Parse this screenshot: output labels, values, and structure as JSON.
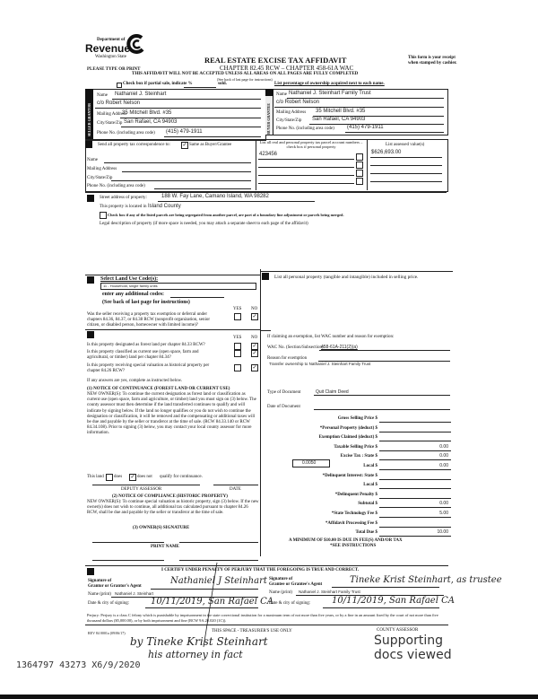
{
  "header": {
    "logo": {
      "dept": "Department of",
      "name": "Revenue",
      "state": "Washington State"
    },
    "title": "REAL ESTATE EXCISE TAX AFFIDAVIT",
    "chapter": "CHAPTER 82.45 RCW – CHAPTER 458-61A WAC",
    "receipt_note_1": "This form is your receipt",
    "receipt_note_2": "when stamped by cashier.",
    "type_or_print": "PLEASE TYPE OR PRINT",
    "warning": "THIS AFFIDAVIT WILL NOT BE ACCEPTED UNLESS ALL AREAS ON ALL PAGES ARE FULLY COMPLETED",
    "see_back": "(See back of last page for instructions)",
    "partial_sale": "Check box if partial sale, indicate %",
    "sold": "sold.",
    "ownership_pct": "List percentage of ownership acquired next to each name."
  },
  "seller": {
    "side_label": "SELLER GRANTOR",
    "name_label": "Name",
    "name": "Nathaniel J. Steinhart",
    "name2": "c/o Robert Nelson",
    "address_label": "Mailing Address",
    "address": "35 Mitchell Blvd. #35",
    "city_label": "City/State/Zip",
    "city": "San Rafael, CA 94903",
    "phone_label": "Phone No. (including area code)",
    "phone": "(415) 479-1911"
  },
  "buyer": {
    "side_label": "BUYER GRANTEE",
    "name_label": "Name",
    "name": "Nathaniel J. Steinhart Family Trust",
    "name2": "c/o Robert Nelson",
    "address_label": "Mailing Address",
    "address": "35 Mitchell Blvd. #35",
    "city_label": "City/State/Zip",
    "city": "San Rafael, CA 94903",
    "phone_label": "Phone No. (including area code)",
    "phone": "(415) 479-1911"
  },
  "section3": {
    "send_label": "Send all property tax correspondence to:",
    "same_as": "Same as Buyer/Grantee",
    "same_checked": true,
    "name_label": "Name",
    "address_label": "Mailing Address",
    "city_label": "City/State/Zip",
    "phone_label": "Phone No. (including area code)",
    "parcel_header": "List all real and personal property tax parcel account numbers – check box if personal property",
    "parcels": [
      "423456",
      "",
      "",
      ""
    ],
    "assessed_header": "List assessed value(s)",
    "assessed": [
      "$626,693.00",
      "",
      "",
      ""
    ]
  },
  "section4": {
    "street_label": "Street address of property:",
    "street": "188 W. Fay Lane, Camano Island, WA 98282",
    "located_label": "This property is located in",
    "located": "Island County",
    "segregated": "Check box if any of the listed parcels are being segregated from another parcel, are part of a boundary line adjustment or parcels being merged.",
    "legal": "Legal description of property (if more space is needed, you may attach a separate sheet to each page of the affidavit)"
  },
  "section5": {
    "label": "Select Land Use Code(s):",
    "code": "11 - Household, single family units",
    "additional": "enter any additional codes:",
    "see_back": "(See back of last page for instructions)",
    "yes": "YES",
    "no": "NO",
    "exemption_q": "Was the seller receiving a property tax exemption or deferral under chapters 84.36, 84.37, or 84.38 RCW (nonprofit organization, senior citizen, or disabled person, homeowner with limited income)?"
  },
  "section6": {
    "yes": "YES",
    "no": "NO",
    "q1": "Is this property designated as forest land per chapter 84.33 RCW?",
    "q2": "Is this property classified as current use (open space, farm and agricultural, or timber) land per chapter 84.34?",
    "q3": "Is this property receiving special valuation as historical property per chapter 84.26 RCW?",
    "if_yes": "If any answers are yes, complete as instructed below.",
    "notice1_title": "(1) NOTICE OF CONTINUANCE (FOREST LAND OR CURRENT USE)",
    "notice1_body": "NEW OWNER(S): To continue the current designation as forest land or classification as current use (open space, farm and agriculture, or timber) land you must sign on (3) below. The county assessor must then determine if the land transferred continues to qualify and will indicate by signing below. If the land no longer qualifies or you do not wish to continue the designation or classification, it will be removed and the compensating or additional taxes will be due and payable by the seller or transferor at the time of sale. (RCW 84.33.140 or RCW 84.34.108). Prior to signing (3) below, you may contact your local county assessor for more information.",
    "this_land": "This land",
    "does": "does",
    "does_not": "does not",
    "qualify": "qualify for continuance.",
    "deputy": "DEPUTY ASSESSOR",
    "date": "DATE",
    "notice2_title": "(2) NOTICE OF COMPLIANCE (HISTORIC PROPERTY)",
    "notice2_body": "NEW OWNER(S): To continue special valuation as historic property, sign (3) below. If the new owner(s) does not wish to continue, all additional tax calculated pursuant to chapter 84.26 RCW, shall be due and payable by the seller or transferor at the time of sale.",
    "owner_sig": "(3) OWNER(S) SIGNATURE",
    "print_name": "PRINT NAME"
  },
  "section7": {
    "personal_property": "List all personal property (tangible and intangible) included in selling price.",
    "exemption_claim": "If claiming an exemption, list WAC number and reason for exemption:",
    "wac_label": "WAC No. (Section/Subsection)",
    "wac": "458-61A-211(2)(a)",
    "reason_label": "Reason for exemption",
    "reason": "Transfer ownership to Nathaniel J. Steinhart Family Trust",
    "doc_type_label": "Type of Document",
    "doc_type": "Quit Claim Deed",
    "doc_date_label": "Date of Document",
    "fees": [
      {
        "label": "Gross Selling Price $",
        "value": ""
      },
      {
        "label": "*Personal Property (deduct) $",
        "value": ""
      },
      {
        "label": "Exemption Claimed (deduct) $",
        "value": ""
      },
      {
        "label": "Taxable Selling Price $",
        "value": "0.00"
      },
      {
        "label": "Excise Tax : State $",
        "value": "0.00"
      },
      {
        "label": "Local $",
        "value": "0.00"
      },
      {
        "label": "*Delinquent Interest: State $",
        "value": ""
      },
      {
        "label": "Local $",
        "value": ""
      },
      {
        "label": "*Delinquent Penalty $",
        "value": ""
      },
      {
        "label": "Subtotal $",
        "value": "0.00"
      },
      {
        "label": "*State Technology Fee $",
        "value": "5.00"
      },
      {
        "label": "*Affidavit Processing Fee $",
        "value": ""
      },
      {
        "label": "Total Due $",
        "value": "10.00"
      }
    ],
    "local_rate": "0.0050",
    "minimum": "A MINIMUM OF $10.00 IS DUE IN FEE(S) AND/OR TAX",
    "see_instructions": "*SEE INSTRUCTIONS"
  },
  "section8": {
    "certify": "I CERTIFY UNDER PENALTY OF PERJURY THAT THE FOREGOING IS TRUE AND CORRECT.",
    "grantor_sig_label1": "Signature of",
    "grantor_sig_label2": "Grantor or Grantor's Agent",
    "grantor_sig": "Nathaniel J Steinhart",
    "grantee_sig_label1": "Signature of",
    "grantee_sig_label2": "Grantee or Grantee's Agent",
    "grantee_sig": "Tineke Krist Steinhart, as trustee",
    "name_print_label": "Name (print)",
    "grantor_name": "Nathaniel J. Steinhart",
    "grantee_name": "Nathaniel J. Steinhart Family Trust",
    "date_city_label": "Date & city of signing:",
    "grantor_date_city": "10/11/2019, San Rafael CA",
    "grantee_date_city": "10/11/2019, San Rafael CA",
    "perjury": "Perjury: Perjury is a class C felony which is punishable by imprisonment in the state correctional institution for a maximum term of not more than five years, or by a fine in an amount fixed by the court of not more than five thousand dollars ($5,000.00), or by both imprisonment and fine (RCW 9A.20.020 (1C)).",
    "rev": "REV 84 0001a (09/06/17)",
    "treasurer": "THIS SPACE - TREASURER'S USE ONLY",
    "county_assessor": "COUNTY ASSESSOR"
  },
  "annotations": {
    "by_line": "by Tineke Krist Steinhart",
    "attorney": "his attorney in fact",
    "stamp_id": "1364797 43273 X6/9/2020",
    "supporting": "Supporting",
    "docs_viewed": "docs viewed"
  }
}
